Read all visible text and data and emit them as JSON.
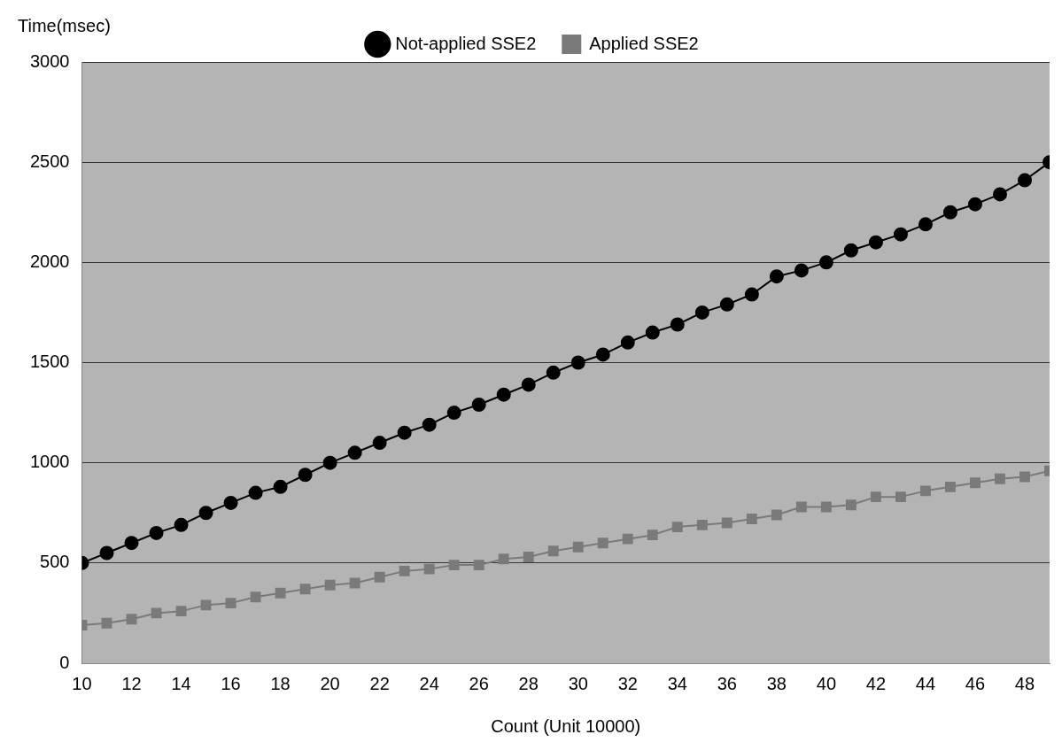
{
  "chart_data": {
    "type": "line",
    "xlabel": "Count (Unit 10000)",
    "ylabel": "Time(msec)",
    "x": [
      10,
      11,
      12,
      13,
      14,
      15,
      16,
      17,
      18,
      19,
      20,
      21,
      22,
      23,
      24,
      25,
      26,
      27,
      28,
      29,
      30,
      31,
      32,
      33,
      34,
      35,
      36,
      37,
      38,
      39,
      40,
      41,
      42,
      43,
      44,
      45,
      46,
      47,
      48,
      49
    ],
    "xlim": [
      10,
      49
    ],
    "xticks": [
      10,
      12,
      14,
      16,
      18,
      20,
      22,
      24,
      26,
      28,
      30,
      32,
      34,
      36,
      38,
      40,
      42,
      44,
      46,
      48
    ],
    "ylim": [
      0,
      3000
    ],
    "yticks": [
      0,
      500,
      1000,
      1500,
      2000,
      2500,
      3000
    ],
    "grid": "y",
    "legend": "top",
    "series": [
      {
        "name": "Not-applied SSE2",
        "color": "#000000",
        "marker": "circle",
        "values": [
          500,
          550,
          600,
          650,
          690,
          750,
          800,
          850,
          880,
          940,
          1000,
          1050,
          1100,
          1150,
          1190,
          1250,
          1290,
          1340,
          1390,
          1450,
          1500,
          1540,
          1600,
          1650,
          1690,
          1750,
          1790,
          1840,
          1930,
          1960,
          2000,
          2060,
          2100,
          2140,
          2190,
          2250,
          2290,
          2340,
          2410,
          2500
        ]
      },
      {
        "name": "Applied SSE2",
        "color": "#7a7a7a",
        "marker": "square",
        "values": [
          190,
          200,
          220,
          250,
          260,
          290,
          300,
          330,
          350,
          370,
          390,
          400,
          430,
          460,
          470,
          490,
          490,
          520,
          530,
          560,
          580,
          600,
          620,
          640,
          680,
          690,
          700,
          720,
          740,
          780,
          780,
          790,
          830,
          830,
          860,
          880,
          900,
          920,
          930,
          960
        ]
      }
    ]
  }
}
